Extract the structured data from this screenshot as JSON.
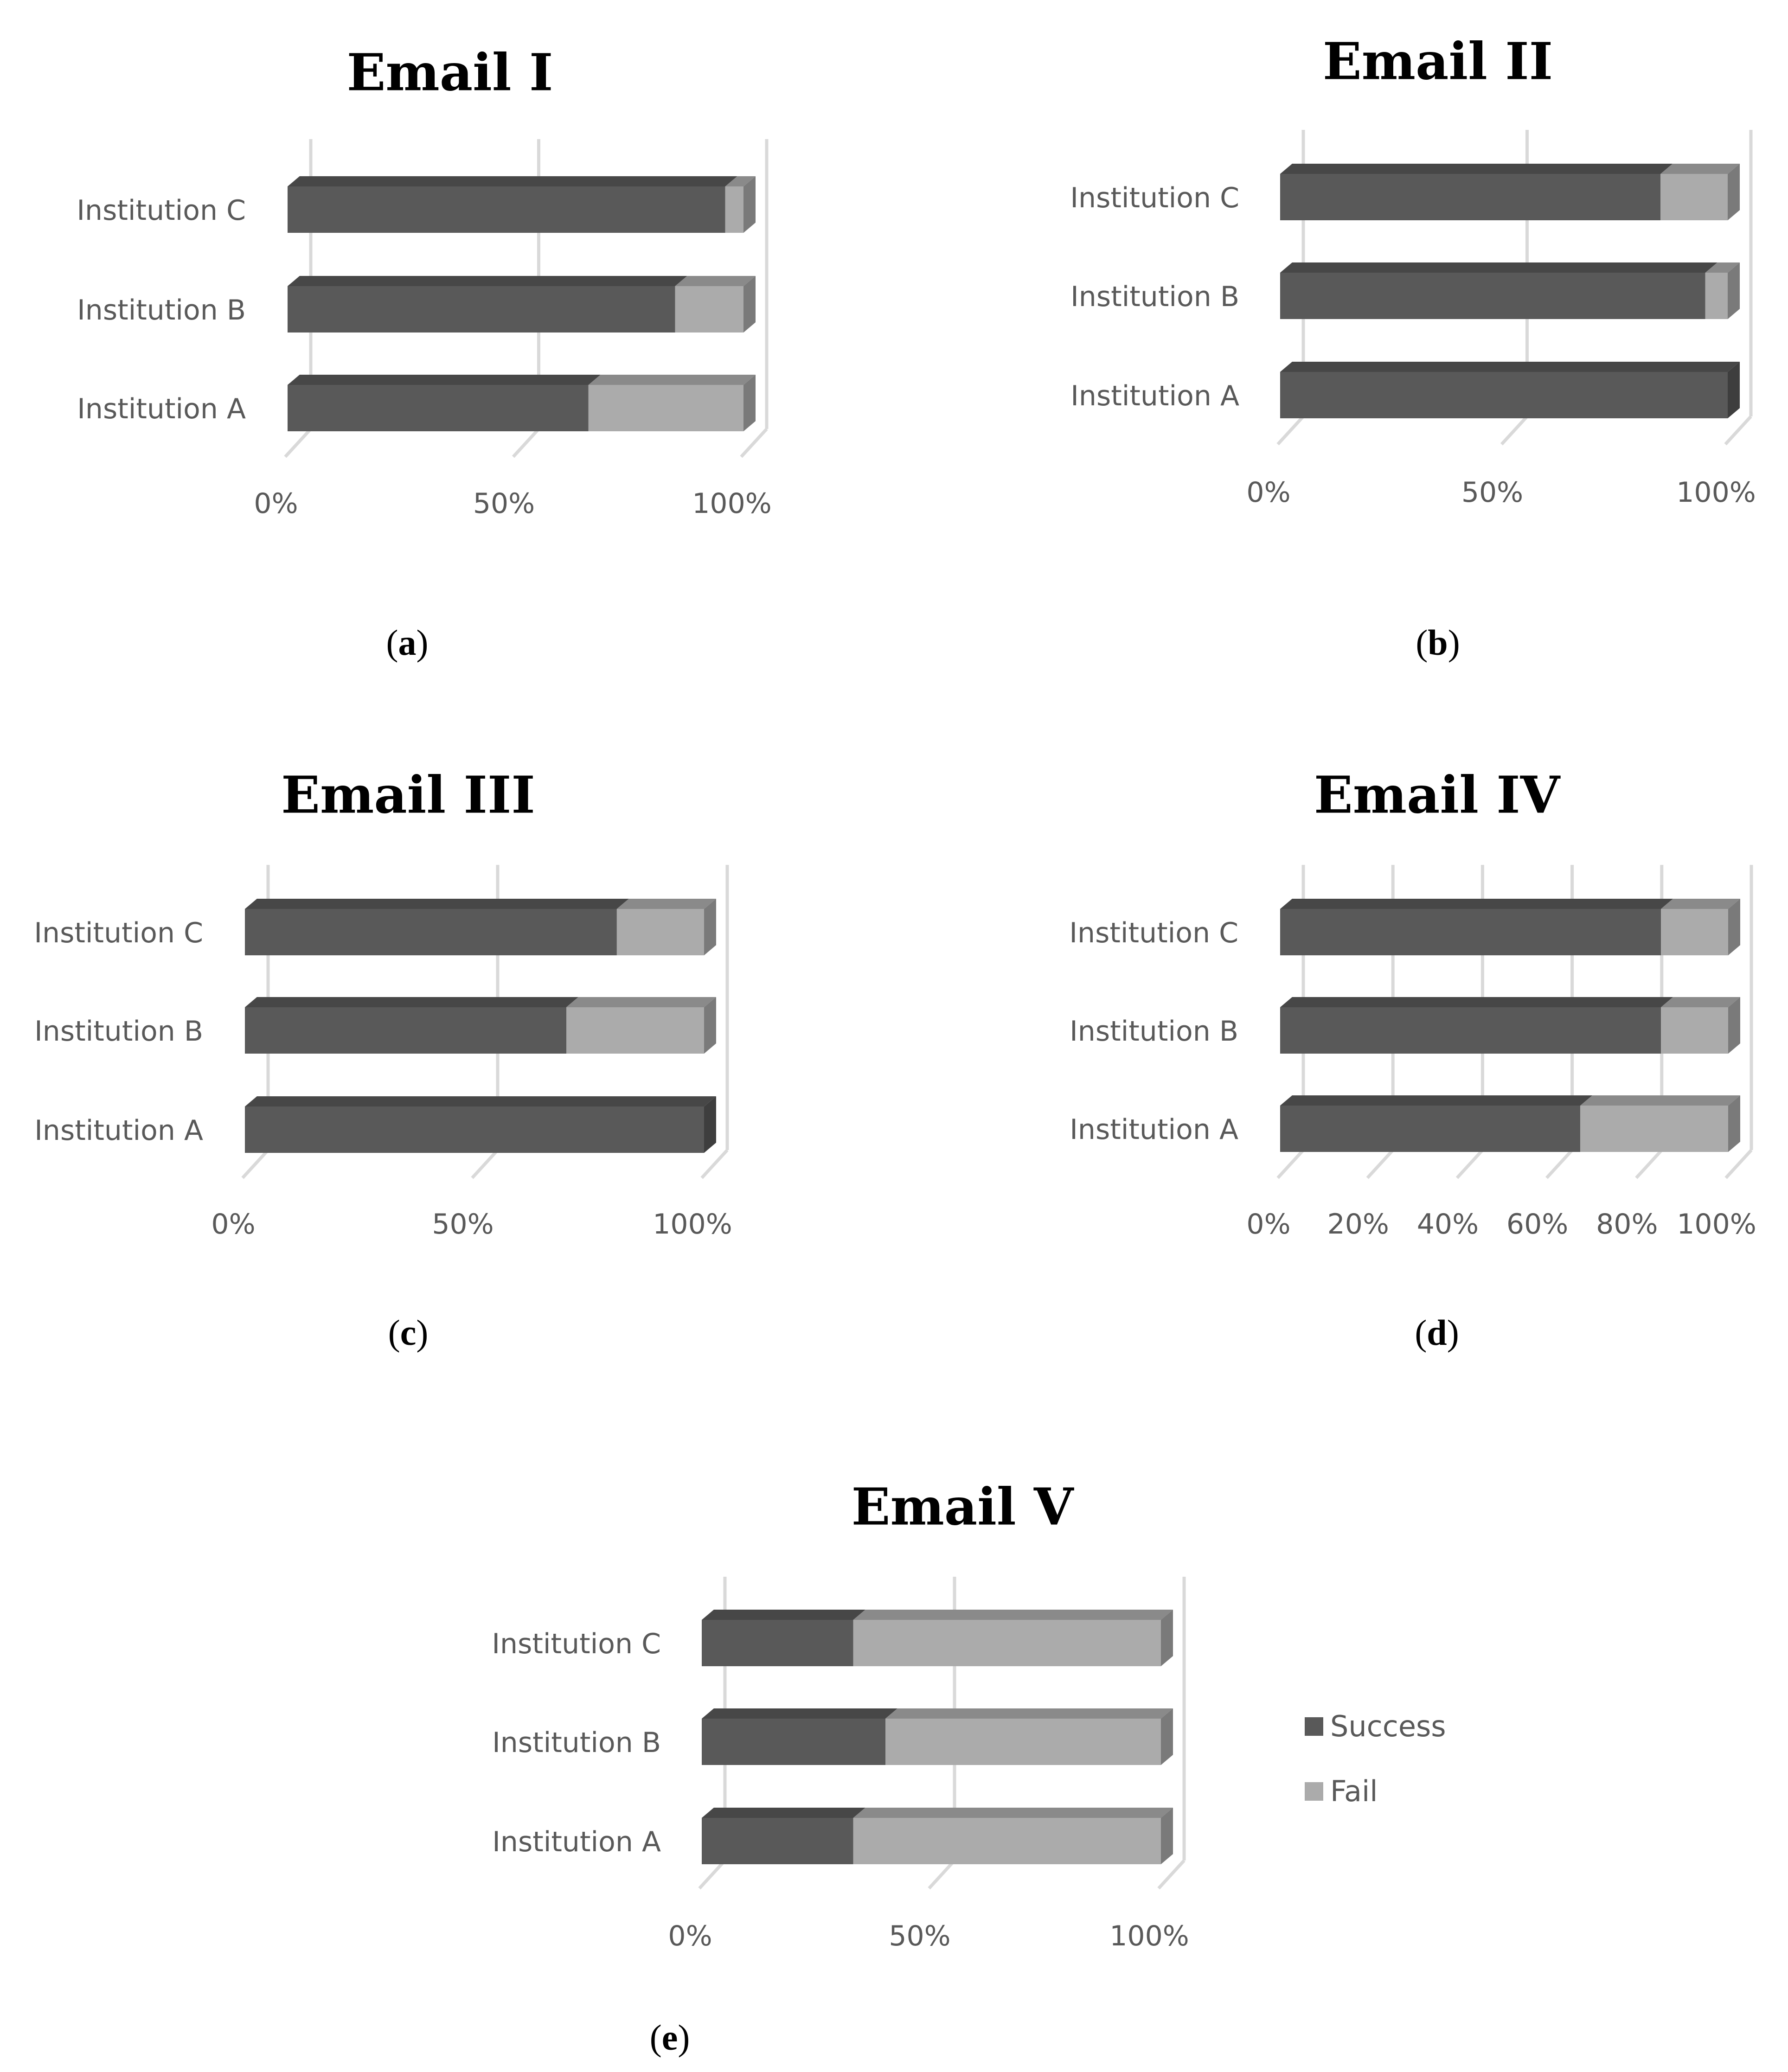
{
  "legend": {
    "items": [
      {
        "label": "Success",
        "color": "#595959"
      },
      {
        "label": "Fail",
        "color": "#ababab"
      }
    ]
  },
  "chart_data": [
    {
      "type": "bar",
      "orientation": "horizontal",
      "stacked": "percent",
      "title": "Email I",
      "caption_open": "(",
      "caption_letter": "a",
      "caption_close": ")",
      "categories": [
        "Institution A",
        "Institution B",
        "Institution C"
      ],
      "xticks": [
        "0%",
        "50%",
        "100%"
      ],
      "xlim": [
        0,
        100
      ],
      "series": [
        {
          "name": "Success",
          "values": [
            66,
            85,
            96
          ]
        },
        {
          "name": "Fail",
          "values": [
            34,
            15,
            4
          ]
        }
      ]
    },
    {
      "type": "bar",
      "orientation": "horizontal",
      "stacked": "percent",
      "title": "Email II",
      "caption_open": "(",
      "caption_letter": "b",
      "caption_close": ")",
      "categories": [
        "Institution A",
        "Institution B",
        "Institution C"
      ],
      "xticks": [
        "0%",
        "50%",
        "100%"
      ],
      "xlim": [
        0,
        100
      ],
      "series": [
        {
          "name": "Success",
          "values": [
            100,
            95,
            85
          ]
        },
        {
          "name": "Fail",
          "values": [
            0,
            5,
            15
          ]
        }
      ]
    },
    {
      "type": "bar",
      "orientation": "horizontal",
      "stacked": "percent",
      "title": "Email III",
      "caption_open": "(",
      "caption_letter": "c",
      "caption_close": ")",
      "categories": [
        "Institution A",
        "Institution B",
        "Institution C"
      ],
      "xticks": [
        "0%",
        "50%",
        "100%"
      ],
      "xlim": [
        0,
        100
      ],
      "series": [
        {
          "name": "Success",
          "values": [
            100,
            70,
            81
          ]
        },
        {
          "name": "Fail",
          "values": [
            0,
            30,
            19
          ]
        }
      ]
    },
    {
      "type": "bar",
      "orientation": "horizontal",
      "stacked": "percent",
      "title": "Email IV",
      "caption_open": "(",
      "caption_letter": "d",
      "caption_close": ")",
      "categories": [
        "Institution A",
        "Institution B",
        "Institution C"
      ],
      "xticks": [
        "0%",
        "20%",
        "40%",
        "60%",
        "80%",
        "100%"
      ],
      "xlim": [
        0,
        100
      ],
      "series": [
        {
          "name": "Success",
          "values": [
            67,
            85,
            85
          ]
        },
        {
          "name": "Fail",
          "values": [
            33,
            15,
            15
          ]
        }
      ]
    },
    {
      "type": "bar",
      "orientation": "horizontal",
      "stacked": "percent",
      "title": "Email V",
      "caption_open": "(",
      "caption_letter": "e",
      "caption_close": ")",
      "categories": [
        "Institution A",
        "Institution B",
        "Institution C"
      ],
      "xticks": [
        "0%",
        "50%",
        "100%"
      ],
      "xlim": [
        0,
        100
      ],
      "series": [
        {
          "name": "Success",
          "values": [
            33,
            40,
            33
          ]
        },
        {
          "name": "Fail",
          "values": [
            67,
            60,
            67
          ]
        }
      ]
    }
  ]
}
